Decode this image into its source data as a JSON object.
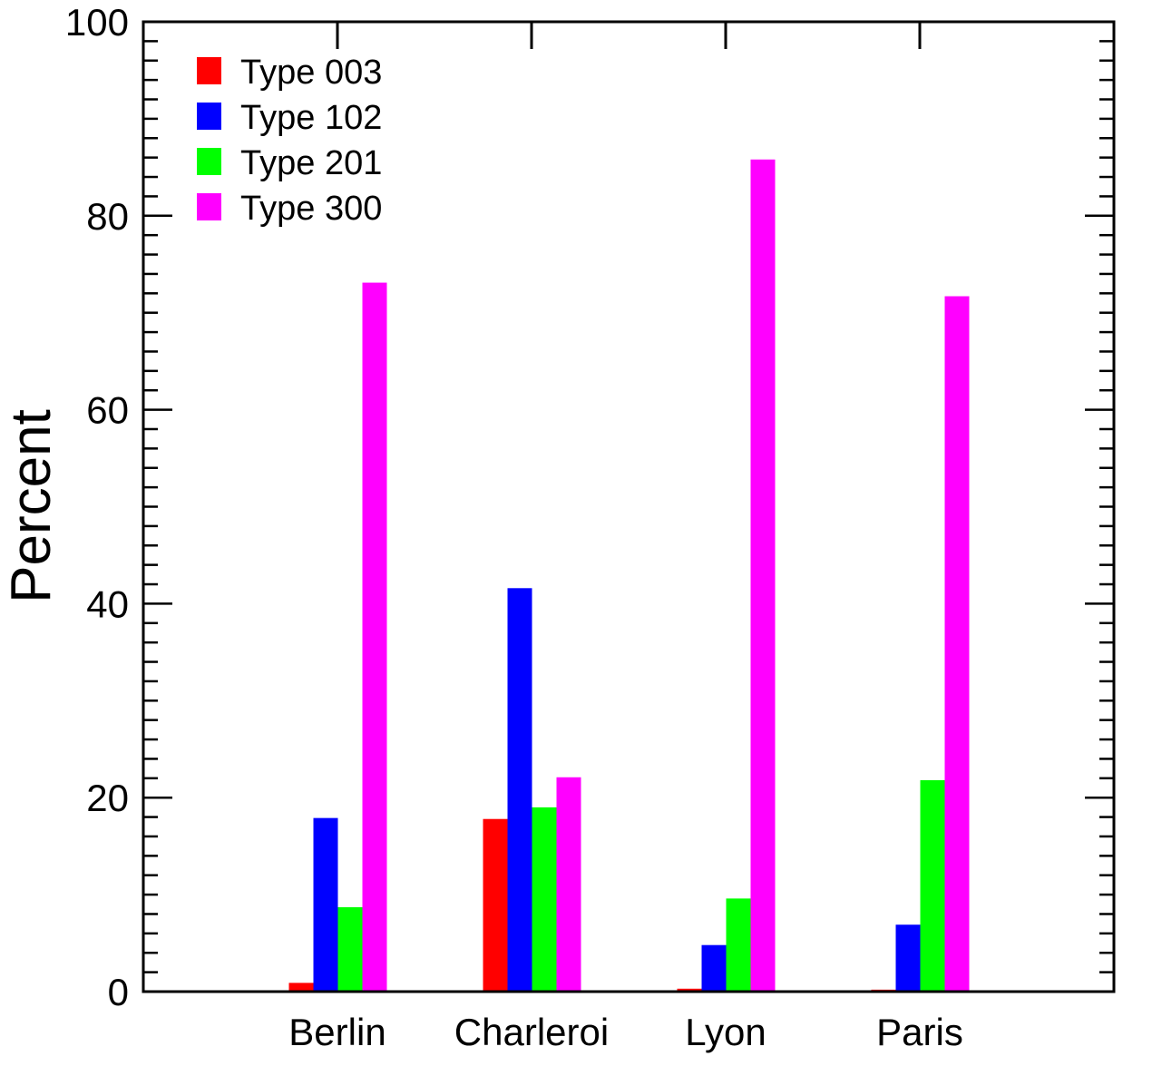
{
  "chart_data": {
    "type": "bar",
    "title": "",
    "xlabel": "",
    "ylabel": "Percent",
    "ylim": [
      0,
      100
    ],
    "yticks": [
      0,
      20,
      40,
      60,
      80,
      100
    ],
    "y_minor_step": 2,
    "grid": false,
    "legend_placement": "top-left",
    "categories": [
      "Berlin",
      "Charleroi",
      "Lyon",
      "Paris"
    ],
    "series": [
      {
        "name": "Type 003",
        "color": "#ff0000",
        "values": [
          0.9,
          17.8,
          0.3,
          0.2
        ]
      },
      {
        "name": "Type 102",
        "color": "#0000ff",
        "values": [
          17.9,
          41.6,
          4.8,
          6.9
        ]
      },
      {
        "name": "Type 201",
        "color": "#00ff00",
        "values": [
          8.7,
          19.0,
          9.6,
          21.8
        ]
      },
      {
        "name": "Type 300",
        "color": "#ff00ff",
        "values": [
          73.1,
          22.1,
          85.8,
          71.7
        ]
      }
    ]
  }
}
